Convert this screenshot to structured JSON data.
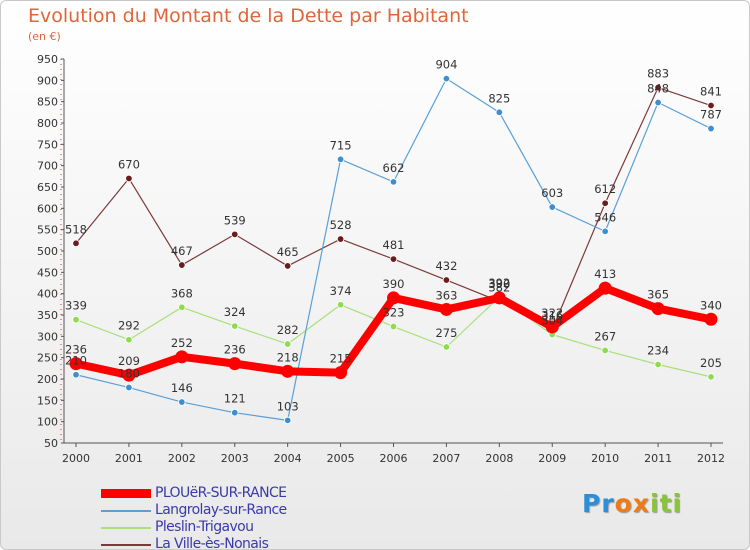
{
  "header": {
    "title": "Evolution du Montant de la Dette par Habitant",
    "subtitle": "(en €)"
  },
  "chart_data": {
    "type": "line",
    "x": [
      2000,
      2001,
      2002,
      2003,
      2004,
      2005,
      2006,
      2007,
      2008,
      2009,
      2010,
      2011,
      2012
    ],
    "ylim": [
      50,
      950
    ],
    "yticks": [
      50,
      100,
      150,
      200,
      250,
      300,
      350,
      400,
      450,
      500,
      550,
      600,
      650,
      700,
      750,
      800,
      850,
      900,
      950
    ],
    "grid": false,
    "legend": "bottom-left",
    "series": [
      {
        "name": "La Ville-ès-Nonais",
        "color": "#6b1d1d",
        "line_color": "#7a3a3a",
        "width": 1.2,
        "values": [
          518,
          670,
          467,
          539,
          465,
          528,
          481,
          432,
          382,
          316,
          612,
          883,
          841
        ]
      },
      {
        "name": "Pleslin-Trigavou",
        "color": "#8fdb4e",
        "line_color": "#a8e07a",
        "width": 1.2,
        "values": [
          339,
          292,
          368,
          324,
          282,
          374,
          323,
          275,
          392,
          304,
          267,
          234,
          205
        ]
      },
      {
        "name": "Langrolay-sur-Rance",
        "color": "#3d8fd1",
        "line_color": "#5a9fd6",
        "width": 1.2,
        "values": [
          210,
          180,
          146,
          121,
          103,
          715,
          662,
          904,
          825,
          603,
          546,
          848,
          787
        ]
      },
      {
        "name": "PLOUëR-SUR-RANCE",
        "color": "#ff0000",
        "line_color": "#ff0000",
        "width": 8,
        "values": [
          236,
          209,
          252,
          236,
          218,
          215,
          390,
          363,
          390,
          322,
          413,
          365,
          340
        ]
      }
    ],
    "point_labels": {
      "PLOUëR-SUR-RANCE": [
        "236",
        "209",
        "252",
        "236",
        "218",
        "215",
        "390",
        "363",
        "390",
        "322",
        "413",
        "365",
        "340"
      ],
      "Langrolay-sur-Rance": [
        "210",
        "180",
        "146",
        "121",
        "103",
        "715",
        "662",
        "904",
        "825",
        "603",
        "546",
        "848",
        "787"
      ],
      "Pleslin-Trigavou": [
        "339",
        "292",
        "368",
        "324",
        "282",
        "374",
        "323",
        "275",
        "392",
        "304",
        "267",
        "234",
        "205"
      ],
      "La Ville-ès-Nonais": [
        "518",
        "670",
        "467",
        "539",
        "465",
        "528",
        "481",
        "432",
        "382",
        "316",
        "612",
        "883",
        "841"
      ]
    },
    "legend_order": [
      "PLOUëR-SUR-RANCE",
      "Langrolay-sur-Rance",
      "Pleslin-Trigavou",
      "La Ville-ès-Nonais"
    ]
  },
  "brand": {
    "letters": [
      "P",
      "r",
      "o",
      "x",
      "i",
      "t",
      "i"
    ],
    "colors": [
      "#2a8fd8",
      "#2a8fd8",
      "#f07a16",
      "#f07a16",
      "#8ac43a",
      "#8ac43a",
      "#8ac43a"
    ]
  }
}
